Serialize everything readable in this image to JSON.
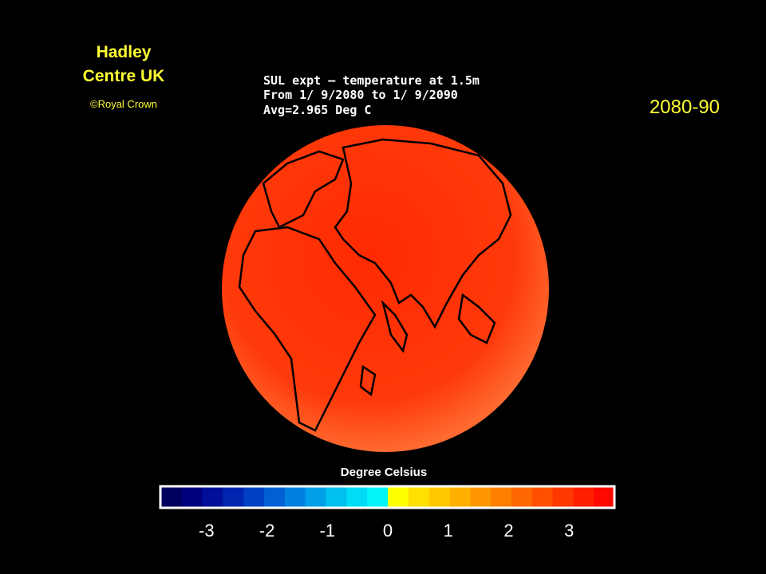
{
  "header": {
    "lines": [
      "Hadley",
      "Centre UK"
    ],
    "credit": "©Royal Crown",
    "period": "2080-90"
  },
  "map": {
    "title_lines": [
      "SUL expt – temperature at 1.5m",
      "From 1/ 9/2080 to 1/ 9/2090",
      "Avg=2.965 Deg C"
    ]
  },
  "colorbar": {
    "label": "Degree Celsius",
    "range": [
      -3.75,
      3.75
    ],
    "ticks": [
      -3,
      -2,
      -1,
      0,
      1,
      2,
      3
    ],
    "colors": [
      "#000060",
      "#00007e",
      "#00109a",
      "#0026b0",
      "#0040c4",
      "#0060d4",
      "#0080e0",
      "#00a0e8",
      "#00c0f0",
      "#00dcf4",
      "#00f4f8",
      "#ffff00",
      "#ffe000",
      "#ffc800",
      "#ffb000",
      "#ff9800",
      "#ff8000",
      "#ff6800",
      "#ff5000",
      "#ff3800",
      "#ff2000",
      "#ff0800"
    ]
  }
}
